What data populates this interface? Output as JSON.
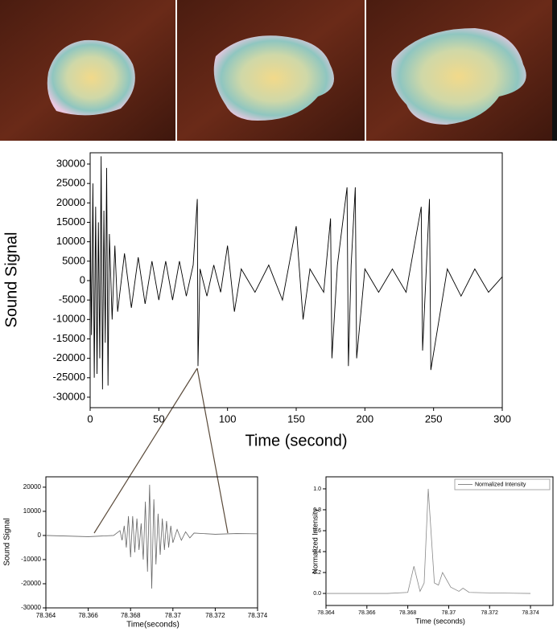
{
  "chart_data": [
    {
      "type": "line",
      "xlabel": "Time (second)",
      "ylabel": "Sound Signal",
      "color": "#000000",
      "x": [
        0,
        1,
        2,
        3,
        4,
        5,
        6,
        7,
        8,
        9,
        10,
        11,
        12,
        13,
        14,
        16,
        18,
        20,
        25,
        30,
        35,
        40,
        45,
        50,
        55,
        60,
        65,
        70,
        75,
        78,
        78.5,
        80,
        85,
        90,
        95,
        100,
        105,
        110,
        120,
        130,
        140,
        150,
        155,
        160,
        170,
        175,
        176,
        180,
        187,
        188,
        190,
        193,
        194,
        200,
        210,
        220,
        230,
        241,
        242,
        247,
        248,
        260,
        270,
        280,
        290,
        300
      ],
      "values": [
        17000,
        -14000,
        25000,
        -25000,
        19000,
        -24000,
        15000,
        -20000,
        32000,
        -28000,
        18000,
        -16000,
        29000,
        -27000,
        12000,
        -10000,
        9000,
        -8000,
        7000,
        -7000,
        6000,
        -6000,
        5000,
        -5000,
        5000,
        -5000,
        5000,
        -4000,
        4000,
        21000,
        -22000,
        3000,
        -4000,
        4000,
        -3000,
        9000,
        -8000,
        3000,
        -3000,
        4000,
        -5000,
        14000,
        -10000,
        3000,
        -3000,
        16000,
        -20000,
        4000,
        24000,
        -22000,
        4000,
        24000,
        -20000,
        3000,
        -3000,
        3000,
        -3000,
        19000,
        -18000,
        21000,
        -23000,
        3000,
        -4000,
        3000,
        -3000,
        1000
      ],
      "xlim": [
        0,
        300
      ],
      "ylim": [
        -32700,
        32900
      ],
      "xticks": [
        0,
        50,
        100,
        150,
        200,
        250,
        300
      ],
      "yticks": [
        -30000,
        -25000,
        -20000,
        -15000,
        -10000,
        -5000,
        0,
        5000,
        10000,
        15000,
        20000,
        25000,
        30000
      ]
    },
    {
      "type": "line",
      "xlabel": "Time(seconds)",
      "ylabel": "Sound Signal",
      "color": "#666666",
      "x": [
        78.364,
        78.366,
        78.3672,
        78.3675,
        78.3676,
        78.3677,
        78.3678,
        78.3679,
        78.368,
        78.3681,
        78.3682,
        78.3683,
        78.3684,
        78.3685,
        78.3686,
        78.3687,
        78.3688,
        78.3689,
        78.369,
        78.3691,
        78.3692,
        78.3693,
        78.3694,
        78.3695,
        78.3696,
        78.3697,
        78.3698,
        78.3699,
        78.37,
        78.3702,
        78.3704,
        78.3706,
        78.3708,
        78.371,
        78.372,
        78.373,
        78.374
      ],
      "values": [
        0,
        -500,
        0,
        2000,
        -2000,
        4000,
        -5000,
        8000,
        -9000,
        8000,
        -7000,
        7000,
        -6000,
        5000,
        -10000,
        14000,
        -15000,
        21000,
        -22000,
        15000,
        -12000,
        9000,
        -8000,
        7000,
        -6000,
        6000,
        -5000,
        4000,
        -3000,
        2500,
        -2000,
        1500,
        -1000,
        1000,
        500,
        800,
        700
      ],
      "xlim": [
        78.364,
        78.374
      ],
      "ylim": [
        -30000,
        24300
      ],
      "xticks": [
        78.364,
        78.366,
        78.368,
        78.37,
        78.372,
        78.374
      ],
      "yticks": [
        -30000,
        -20000,
        -10000,
        0,
        10000,
        20000
      ]
    },
    {
      "type": "line",
      "xlabel": "Time (seconds)",
      "ylabel": "Normalized Intensity",
      "legend": "upper right",
      "x": [
        78.364,
        78.367,
        78.368,
        78.3683,
        78.3686,
        78.3688,
        78.369,
        78.3693,
        78.3695,
        78.3697,
        78.3701,
        78.3705,
        78.3707,
        78.371,
        78.372,
        78.374
      ],
      "series": [
        {
          "name": "Normalized Intensity",
          "color": "#888888",
          "values": [
            0,
            0,
            0.01,
            0.26,
            0.02,
            0.1,
            1.0,
            0.1,
            0.08,
            0.2,
            0.06,
            0.02,
            0.05,
            0.01,
            0.005,
            0
          ]
        }
      ],
      "xlim": [
        78.364,
        78.3751
      ],
      "ylim": [
        -0.115,
        1.115
      ],
      "xticks": [
        78.364,
        78.366,
        78.368,
        78.37,
        78.372,
        78.374
      ],
      "yticks": [
        {
          "value": 0,
          "label": "0.0"
        },
        0.2,
        0.4,
        0.6,
        0.8,
        {
          "value": 1,
          "label": "1.0"
        }
      ]
    }
  ]
}
